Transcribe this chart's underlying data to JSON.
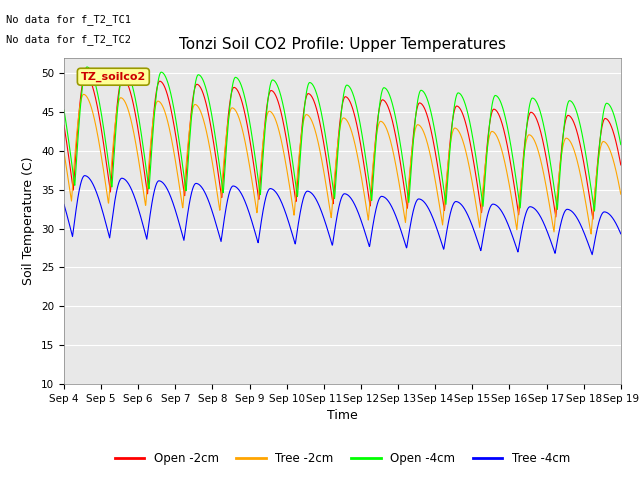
{
  "title": "Tonzi Soil CO2 Profile: Upper Temperatures",
  "xlabel": "Time",
  "ylabel": "Soil Temperature (C)",
  "ylim": [
    10,
    52
  ],
  "annotation1": "No data for f_T2_TC1",
  "annotation2": "No data for f_T2_TC2",
  "legend_label1": "Open -2cm",
  "legend_label2": "Tree -2cm",
  "legend_label3": "Open -4cm",
  "legend_label4": "Tree -4cm",
  "color1": "#FF0000",
  "color2": "#FFA500",
  "color3": "#00FF00",
  "color4": "#0000FF",
  "legend_box_label": "TZ_soilco2",
  "legend_box_bg": "#FFFF99",
  "legend_box_edge": "#999900",
  "bg_color": "#E8E8E8",
  "x_tick_labels": [
    "Sep 4",
    "Sep 5",
    "Sep 6",
    "Sep 7",
    "Sep 8",
    "Sep 9",
    "Sep 10",
    "Sep 11",
    "Sep 12",
    "Sep 13",
    "Sep 14",
    "Sep 15",
    "Sep 16",
    "Sep 17",
    "Sep 18",
    "Sep 19"
  ],
  "title_fontsize": 11,
  "axis_label_fontsize": 9,
  "tick_fontsize": 7.5
}
